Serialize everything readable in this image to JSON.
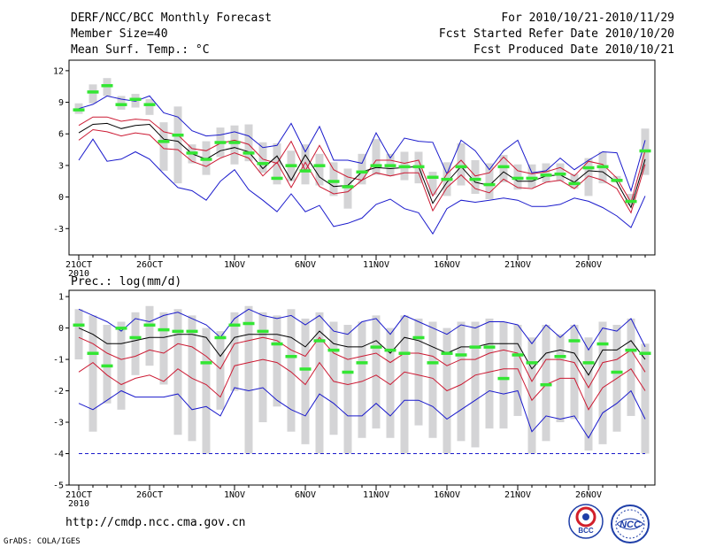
{
  "header": {
    "title": "DERF/NCC/BCC Monthly Forecast",
    "member_size": "Member Size=40",
    "variable": "Mean Surf. Temp.: °C",
    "period": "For 2010/10/21-2010/11/29",
    "fcst_started": "Fcst Started Refer Date 2010/10/20",
    "fcst_produced": "Fcst Produced Date 2010/10/21"
  },
  "footer": {
    "url": "http://cmdp.ncc.cma.gov.cn",
    "grads": "GrADS: COLA/IGES",
    "logo_bcc": "BCC",
    "logo_ncc": "NCC"
  },
  "colors": {
    "envelope": "#1a1acc",
    "quartile": "#cc1a33",
    "mean": "#000000",
    "observed": "#33e633",
    "box": "#d4d4d6",
    "line4": "#1a1acc"
  },
  "chart_data": [
    {
      "type": "line",
      "name": "temperature",
      "ylabel": "",
      "ylim": [
        -5.5,
        13
      ],
      "yticks": [
        12,
        9,
        6,
        3,
        0,
        -3
      ],
      "x_days": 40,
      "xtick_labels": [
        {
          "day": 0,
          "label": "21OCT",
          "sub": "2010"
        },
        {
          "day": 5,
          "label": "26OCT"
        },
        {
          "day": 11,
          "label": "1NOV"
        },
        {
          "day": 16,
          "label": "6NOV"
        },
        {
          "day": 21,
          "label": "11NOV"
        },
        {
          "day": 26,
          "label": "16NOV"
        },
        {
          "day": 31,
          "label": "21NOV"
        },
        {
          "day": 36,
          "label": "26NOV"
        }
      ],
      "series": [
        {
          "name": "max",
          "role": "envelope",
          "values": [
            8.4,
            8.8,
            9.6,
            9.3,
            9.1,
            9.6,
            8.0,
            7.6,
            6.3,
            5.8,
            5.9,
            6.2,
            5.8,
            4.7,
            4.9,
            7.0,
            4.3,
            6.7,
            3.5,
            3.5,
            3.2,
            6.1,
            3.7,
            5.6,
            5.3,
            5.2,
            2.2,
            5.4,
            4.4,
            2.6,
            4.4,
            5.4,
            2.3,
            2.5,
            3.7,
            2.6,
            3.5,
            4.3,
            4.2,
            0.6,
            5.4
          ]
        },
        {
          "name": "q75",
          "role": "quartile",
          "values": [
            6.8,
            7.6,
            7.6,
            7.2,
            7.4,
            7.3,
            6.2,
            5.9,
            4.6,
            4.4,
            5.1,
            5.4,
            5.0,
            3.6,
            3.2,
            5.3,
            2.5,
            4.9,
            2.6,
            1.9,
            1.6,
            3.5,
            3.5,
            3.2,
            3.5,
            0.1,
            2.2,
            3.5,
            2.0,
            2.3,
            3.8,
            2.5,
            2.2,
            2.4,
            2.8,
            2.0,
            3.4,
            3.1,
            1.8,
            -0.5,
            4.4
          ]
        },
        {
          "name": "mean",
          "role": "mean",
          "values": [
            6.1,
            6.9,
            7.0,
            6.5,
            6.8,
            6.9,
            5.5,
            5.3,
            4.1,
            3.6,
            4.4,
            4.7,
            4.3,
            2.7,
            3.9,
            1.6,
            4.0,
            1.9,
            1.0,
            1.1,
            2.4,
            2.8,
            2.7,
            2.8,
            2.9,
            -0.6,
            1.4,
            2.9,
            1.4,
            1.1,
            2.4,
            1.5,
            1.5,
            2.0,
            2.1,
            1.4,
            2.5,
            2.4,
            1.4,
            -1.0,
            3.6
          ]
        },
        {
          "name": "q25",
          "role": "quartile",
          "values": [
            5.4,
            6.4,
            6.2,
            5.8,
            6.1,
            5.9,
            4.6,
            4.5,
            3.4,
            2.9,
            3.7,
            4.2,
            3.7,
            2.0,
            3.3,
            0.9,
            3.3,
            1.0,
            0.3,
            0.5,
            1.6,
            2.3,
            2.0,
            2.3,
            2.3,
            -1.3,
            0.9,
            2.1,
            0.8,
            0.4,
            1.7,
            0.9,
            0.8,
            1.4,
            1.6,
            0.8,
            2.0,
            1.6,
            0.8,
            -1.5,
            3.1
          ]
        },
        {
          "name": "min",
          "role": "envelope",
          "values": [
            3.5,
            5.5,
            3.4,
            3.6,
            4.3,
            3.6,
            2.2,
            0.9,
            0.6,
            -0.3,
            1.5,
            2.6,
            0.7,
            -0.3,
            -1.4,
            0.3,
            -1.4,
            -0.8,
            -2.8,
            -2.5,
            -2.0,
            -0.7,
            -0.2,
            -1.1,
            -1.5,
            -3.5,
            -1.1,
            -0.3,
            -0.5,
            -0.3,
            -0.1,
            -0.3,
            -0.9,
            -0.9,
            -0.7,
            -0.1,
            -0.4,
            -1.0,
            -1.8,
            -2.9,
            0.1
          ]
        }
      ],
      "box_low": [
        7.9,
        8.9,
        9.6,
        8.3,
        8.5,
        7.8,
        2.5,
        1.3,
        3.2,
        2.1,
        3.8,
        3.1,
        3.4,
        2.3,
        1.2,
        1.5,
        1.2,
        1.1,
        0.1,
        -1.1,
        1.2,
        2.1,
        2.0,
        1.6,
        1.3,
        0.2,
        0.1,
        1.1,
        0.3,
        -0.2,
        1.4,
        0.7,
        0.9,
        1.4,
        1.5,
        0.8,
        0.1,
        1.3,
        1.4,
        -0.8,
        2.1
      ],
      "box_high": [
        8.9,
        10.7,
        11.3,
        9.6,
        9.8,
        9.3,
        7.1,
        8.6,
        5.0,
        5.3,
        6.6,
        6.8,
        6.9,
        5.2,
        5.1,
        4.4,
        5.0,
        4.1,
        3.3,
        2.7,
        4.1,
        5.5,
        4.1,
        4.3,
        4.3,
        2.4,
        3.3,
        5.1,
        3.5,
        3.2,
        4.0,
        3.1,
        3.1,
        3.2,
        3.2,
        2.2,
        3.7,
        4.3,
        2.0,
        0.3,
        6.5
      ],
      "observed": [
        8.3,
        10.0,
        10.6,
        8.8,
        9.3,
        8.8,
        5.3,
        5.9,
        4.2,
        3.6,
        5.2,
        5.2,
        4.2,
        3.2,
        1.8,
        3.0,
        2.5,
        3.0,
        1.5,
        1.0,
        2.4,
        3.0,
        3.0,
        2.9,
        2.9,
        1.9,
        1.7,
        2.9,
        1.7,
        1.2,
        2.9,
        1.8,
        1.8,
        2.1,
        2.2,
        1.3,
        2.8,
        2.9,
        1.6,
        -0.4,
        4.4
      ]
    },
    {
      "type": "line",
      "name": "precipitation",
      "title": "Prec.: log(mm/d)",
      "ylim": [
        -5,
        1.2
      ],
      "yticks": [
        1,
        0,
        -1,
        -2,
        -3,
        -4,
        -5
      ],
      "x_days": 40,
      "xtick_labels": [
        {
          "day": 0,
          "label": "21OCT",
          "sub": "2010"
        },
        {
          "day": 5,
          "label": "26OCT"
        },
        {
          "day": 11,
          "label": "1NOV"
        },
        {
          "day": 16,
          "label": "6NOV"
        },
        {
          "day": 21,
          "label": "11NOV"
        },
        {
          "day": 26,
          "label": "16NOV"
        },
        {
          "day": 31,
          "label": "21NOV"
        },
        {
          "day": 36,
          "label": "26NOV"
        }
      ],
      "series": [
        {
          "name": "max",
          "role": "envelope",
          "values": [
            0.6,
            0.4,
            0.2,
            -0.1,
            0.3,
            0.2,
            0.4,
            0.5,
            0.3,
            0.1,
            -0.3,
            0.3,
            0.6,
            0.4,
            0.3,
            0.4,
            0.1,
            0.4,
            -0.1,
            -0.2,
            0.2,
            0.3,
            -0.2,
            0.4,
            0.2,
            0.0,
            -0.2,
            0.1,
            0.0,
            0.2,
            0.2,
            0.1,
            -0.5,
            0.1,
            -0.3,
            0.1,
            -0.7,
            0.0,
            -0.1,
            0.3,
            -0.6
          ]
        },
        {
          "name": "q75",
          "role": "quartile",
          "values": [
            -0.3,
            -0.5,
            -0.8,
            -1.0,
            -0.9,
            -0.7,
            -0.8,
            -0.5,
            -0.6,
            -0.9,
            -1.3,
            -0.5,
            -0.4,
            -0.3,
            -0.4,
            -0.7,
            -0.9,
            -0.3,
            -0.8,
            -1.0,
            -0.9,
            -0.8,
            -1.1,
            -0.8,
            -0.8,
            -0.9,
            -1.2,
            -1.0,
            -1.0,
            -0.8,
            -0.7,
            -0.8,
            -1.7,
            -1.0,
            -1.0,
            -1.1,
            -1.9,
            -1.1,
            -1.0,
            -0.7,
            -1.4
          ]
        },
        {
          "name": "mean",
          "role": "mean",
          "values": [
            0.0,
            -0.2,
            -0.5,
            -0.5,
            -0.4,
            -0.3,
            -0.3,
            -0.2,
            -0.2,
            -0.3,
            -0.9,
            -0.3,
            -0.2,
            -0.2,
            -0.2,
            -0.3,
            -0.6,
            -0.1,
            -0.5,
            -0.6,
            -0.6,
            -0.4,
            -0.8,
            -0.3,
            -0.4,
            -0.6,
            -0.8,
            -0.6,
            -0.6,
            -0.5,
            -0.5,
            -0.5,
            -1.3,
            -0.8,
            -0.7,
            -0.8,
            -1.5,
            -0.7,
            -0.7,
            -0.4,
            -1.0
          ]
        },
        {
          "name": "q25",
          "role": "quartile",
          "values": [
            -1.4,
            -1.1,
            -1.5,
            -1.8,
            -1.6,
            -1.5,
            -1.7,
            -1.3,
            -1.6,
            -1.8,
            -2.2,
            -1.2,
            -1.1,
            -1.0,
            -1.1,
            -1.4,
            -1.8,
            -1.1,
            -1.7,
            -1.8,
            -1.7,
            -1.5,
            -1.8,
            -1.4,
            -1.5,
            -1.6,
            -2.0,
            -1.8,
            -1.5,
            -1.4,
            -1.3,
            -1.3,
            -2.3,
            -1.8,
            -1.6,
            -1.6,
            -2.6,
            -1.9,
            -1.6,
            -1.3,
            -2.0
          ]
        },
        {
          "name": "min",
          "role": "envelope",
          "values": [
            -2.4,
            -2.6,
            -2.3,
            -2.0,
            -2.2,
            -2.2,
            -2.2,
            -2.1,
            -2.6,
            -2.5,
            -2.8,
            -1.9,
            -2.0,
            -1.9,
            -2.3,
            -2.6,
            -2.8,
            -2.1,
            -2.4,
            -2.8,
            -2.8,
            -2.4,
            -2.8,
            -2.3,
            -2.3,
            -2.5,
            -2.9,
            -2.6,
            -2.3,
            -2.0,
            -2.1,
            -2.0,
            -3.3,
            -2.8,
            -2.9,
            -2.8,
            -3.5,
            -2.7,
            -2.4,
            -2.0,
            -2.9
          ]
        },
        {
          "name": "floor",
          "role": "floor",
          "values": [
            -4,
            -4,
            -4,
            -4,
            -4,
            -4,
            -4,
            -4,
            -4,
            -4,
            -4,
            -4,
            -4,
            -4,
            -4,
            -4,
            -4,
            -4,
            -4,
            -4,
            -4,
            -4,
            -4,
            -4,
            -4,
            -4,
            -4,
            -4,
            -4,
            -4,
            -4,
            -4,
            -4,
            -4,
            -4,
            -4,
            -4,
            -4,
            -4,
            -4,
            -4
          ]
        }
      ],
      "box_low": [
        -1.0,
        -3.3,
        -2.4,
        -2.6,
        -1.5,
        -1.2,
        -1.8,
        -3.4,
        -3.6,
        -4.0,
        -2.6,
        -2.0,
        -4.0,
        -3.0,
        -2.5,
        -3.3,
        -3.7,
        -4.0,
        -3.4,
        -4.0,
        -3.5,
        -3.2,
        -3.5,
        -4.0,
        -3.1,
        -3.5,
        -4.0,
        -3.6,
        -3.8,
        -3.2,
        -3.2,
        -2.8,
        -4.0,
        -3.6,
        -3.0,
        -2.9,
        -3.9,
        -3.7,
        -3.3,
        -2.8,
        -4.0
      ],
      "box_high": [
        0.6,
        0.4,
        0.1,
        0.2,
        0.5,
        0.7,
        0.5,
        0.6,
        0.4,
        0.0,
        -0.1,
        0.5,
        0.7,
        0.5,
        0.4,
        0.6,
        0.3,
        0.5,
        0.2,
        0.1,
        0.2,
        0.4,
        0.0,
        0.4,
        0.3,
        0.2,
        0.0,
        0.2,
        0.2,
        0.3,
        0.2,
        0.1,
        -0.3,
        0.1,
        -0.2,
        0.1,
        -0.3,
        0.2,
        0.1,
        0.3,
        -0.5
      ],
      "observed": [
        0.1,
        -0.8,
        -1.2,
        0.0,
        -0.3,
        0.1,
        -0.05,
        -0.1,
        -0.1,
        -1.1,
        -0.3,
        0.1,
        0.15,
        -0.1,
        -0.5,
        -0.9,
        -1.3,
        -0.4,
        -0.7,
        -1.4,
        -1.1,
        -0.6,
        -0.7,
        -0.8,
        -0.3,
        -1.1,
        -0.8,
        -0.85,
        -0.6,
        -0.6,
        -1.6,
        -0.85,
        -1.1,
        -1.8,
        -0.9,
        -0.4,
        -1.1,
        -0.5,
        -1.4,
        -0.7,
        -0.8
      ]
    }
  ]
}
